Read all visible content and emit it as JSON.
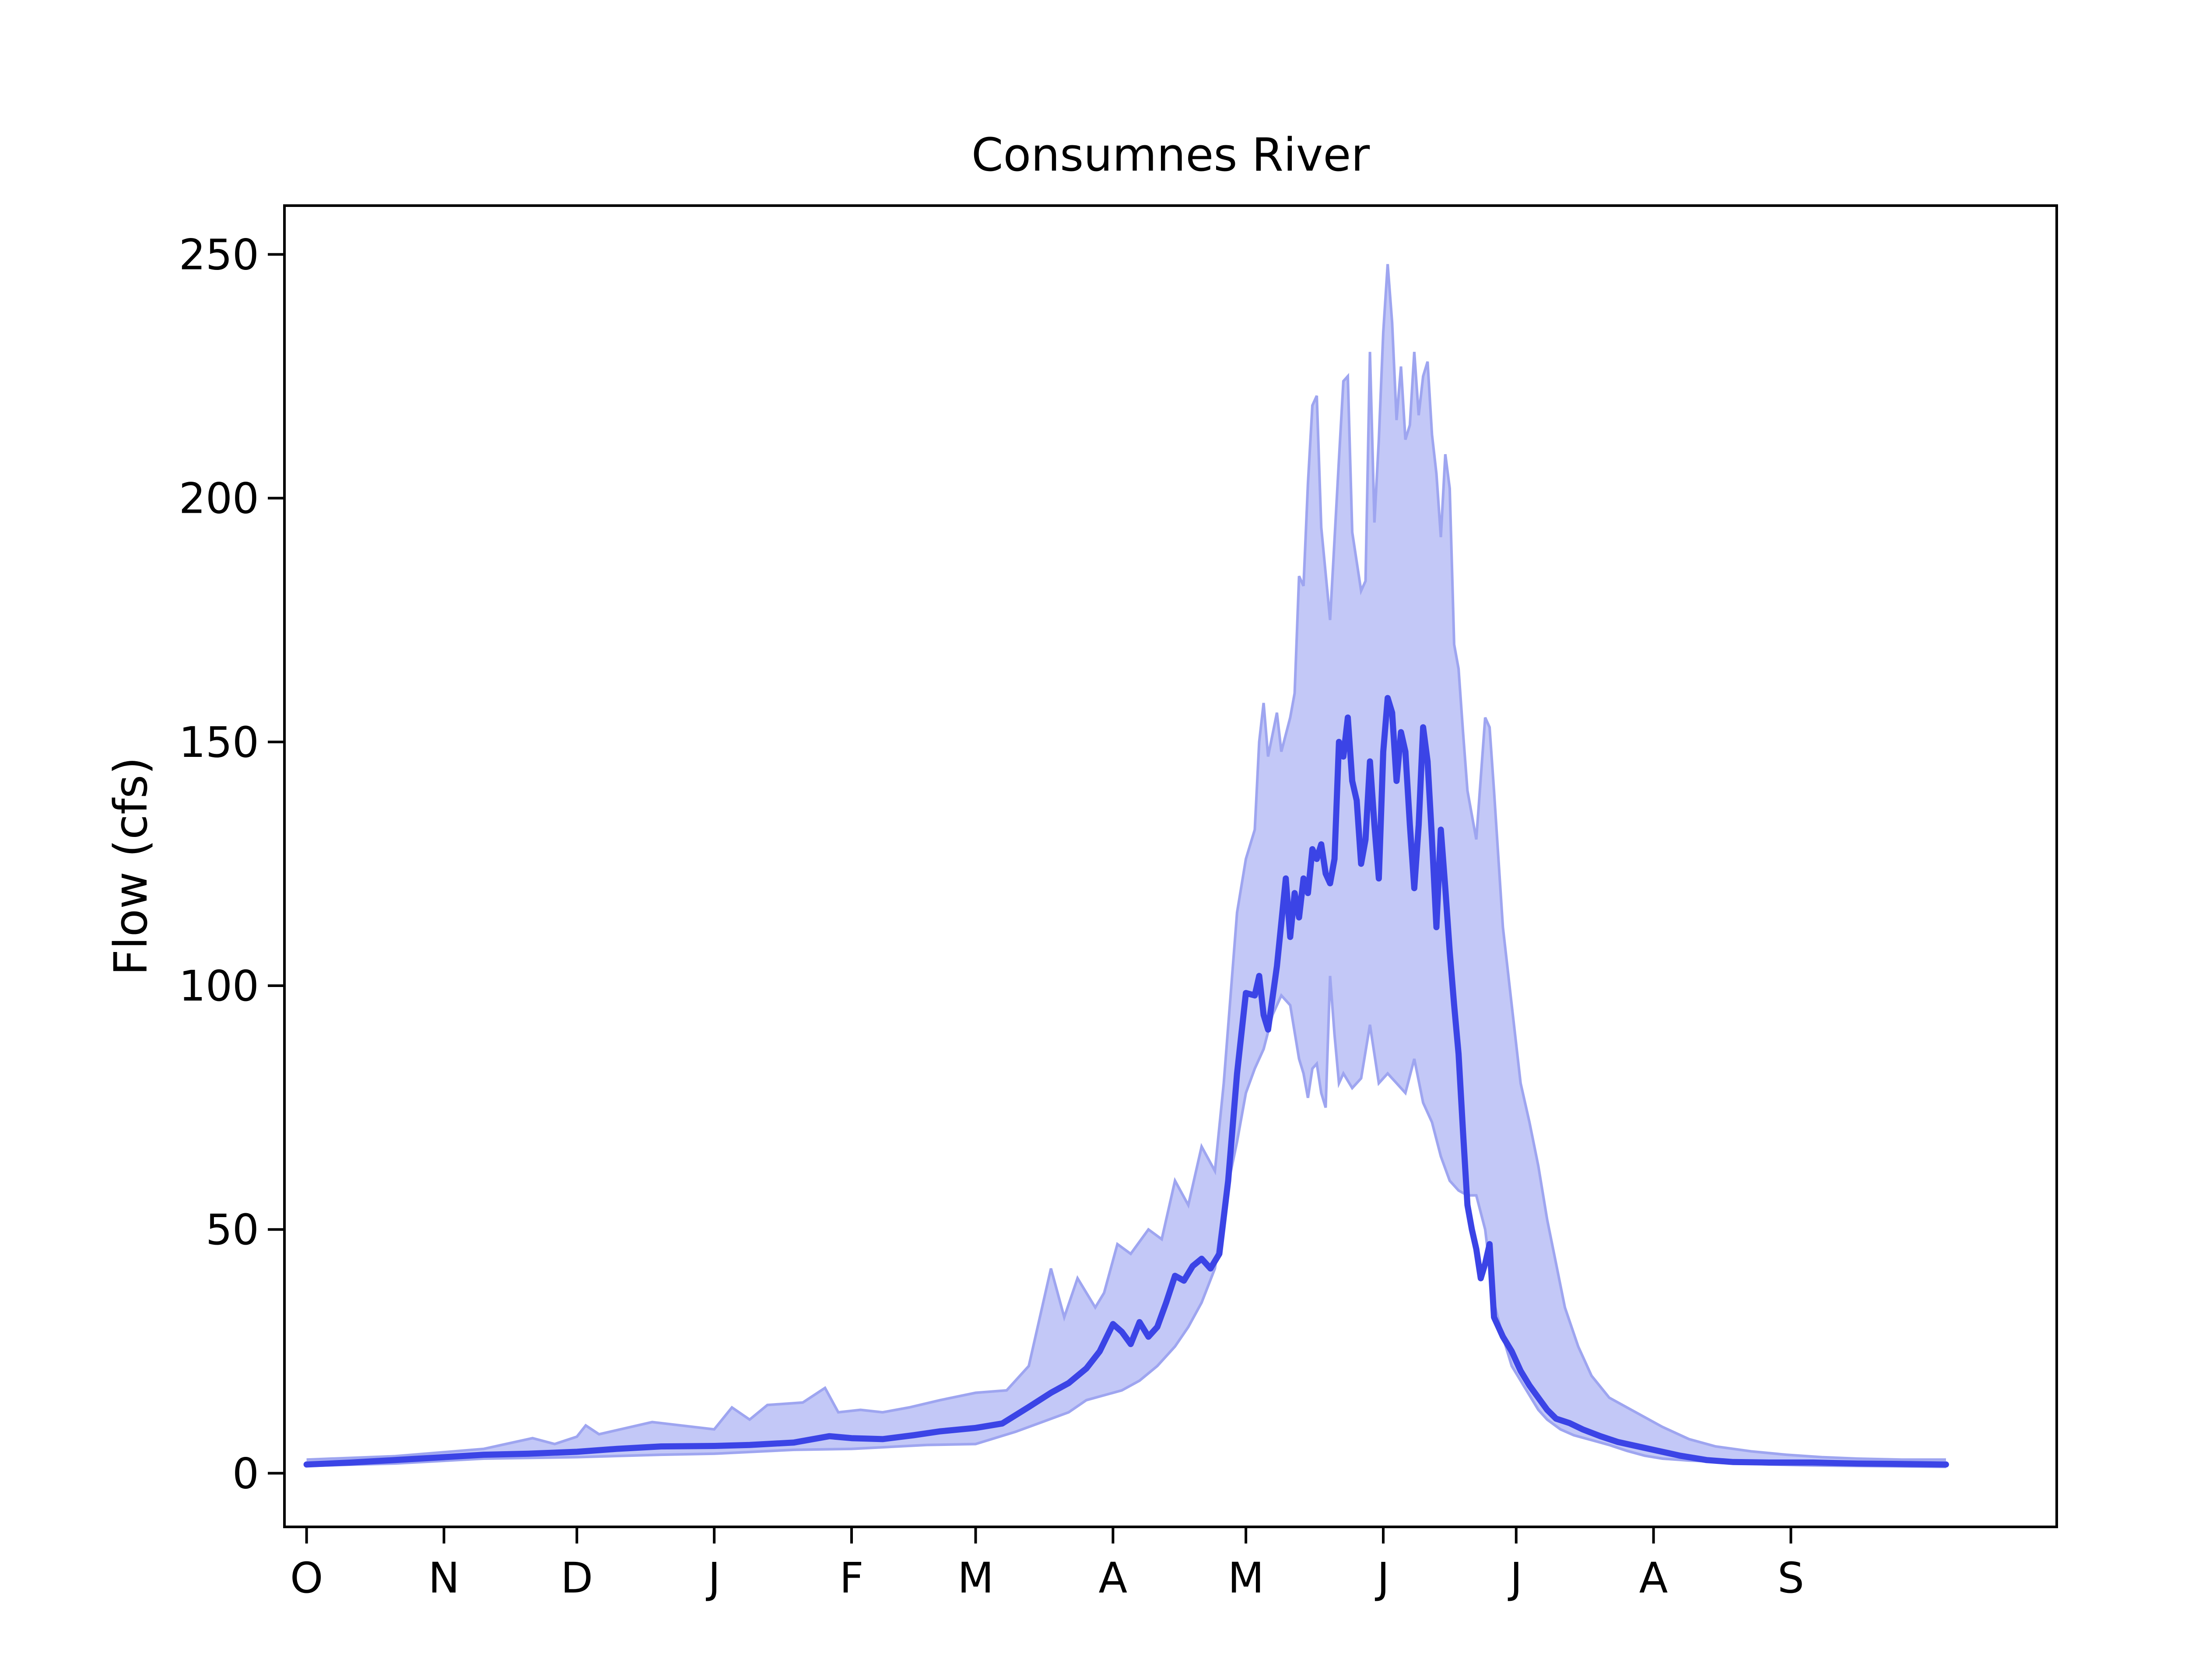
{
  "colors": {
    "line": "#3b44e6",
    "band_fill": "#c3c8f7",
    "band_edge": "#9ea5f0",
    "axes": "#000000"
  },
  "chart_data": {
    "type": "area",
    "title": "Consumnes River",
    "xlabel": "",
    "ylabel": "Flow (cfs)",
    "ylim": [
      -11,
      260
    ],
    "xlim": [
      -5,
      395
    ],
    "yticks": [
      0,
      50,
      100,
      150,
      200,
      250
    ],
    "xticks": [
      {
        "x": 0,
        "label": "O"
      },
      {
        "x": 31,
        "label": "N"
      },
      {
        "x": 61,
        "label": "D"
      },
      {
        "x": 92,
        "label": "J"
      },
      {
        "x": 123,
        "label": "F"
      },
      {
        "x": 151,
        "label": "M"
      },
      {
        "x": 182,
        "label": "A"
      },
      {
        "x": 212,
        "label": "M"
      },
      {
        "x": 243,
        "label": "J"
      },
      {
        "x": 273,
        "label": "J"
      },
      {
        "x": 304,
        "label": "A"
      },
      {
        "x": 335,
        "label": "S"
      }
    ],
    "series": [
      {
        "role": "median",
        "points": [
          [
            0,
            1.8
          ],
          [
            10,
            2.2
          ],
          [
            20,
            2.7
          ],
          [
            31,
            3.3
          ],
          [
            40,
            3.8
          ],
          [
            50,
            4.0
          ],
          [
            61,
            4.4
          ],
          [
            70,
            5.0
          ],
          [
            80,
            5.5
          ],
          [
            92,
            5.6
          ],
          [
            100,
            5.8
          ],
          [
            110,
            6.3
          ],
          [
            118,
            7.6
          ],
          [
            123,
            7.2
          ],
          [
            130,
            7.0
          ],
          [
            137,
            7.8
          ],
          [
            143,
            8.6
          ],
          [
            151,
            9.3
          ],
          [
            157,
            10.2
          ],
          [
            163,
            13.6
          ],
          [
            168,
            16.5
          ],
          [
            172,
            18.5
          ],
          [
            176,
            21.5
          ],
          [
            179,
            25.0
          ],
          [
            182,
            30.6
          ],
          [
            184,
            29.0
          ],
          [
            186,
            26.5
          ],
          [
            188,
            31.0
          ],
          [
            190,
            28.0
          ],
          [
            192,
            30.0
          ],
          [
            194,
            35.0
          ],
          [
            196,
            40.5
          ],
          [
            198,
            39.5
          ],
          [
            200,
            42.5
          ],
          [
            202,
            44.0
          ],
          [
            204,
            42.0
          ],
          [
            206,
            45.0
          ],
          [
            208,
            60.0
          ],
          [
            210,
            82.0
          ],
          [
            212,
            98.5
          ],
          [
            214,
            98.0
          ],
          [
            215,
            102.0
          ],
          [
            216,
            94.0
          ],
          [
            217,
            91.0
          ],
          [
            219,
            104.0
          ],
          [
            221,
            122.0
          ],
          [
            222,
            110.0
          ],
          [
            223,
            119.0
          ],
          [
            224,
            114.0
          ],
          [
            225,
            122.0
          ],
          [
            226,
            119.0
          ],
          [
            227,
            128.0
          ],
          [
            228,
            126.0
          ],
          [
            229,
            129.0
          ],
          [
            230,
            123.0
          ],
          [
            231,
            121.0
          ],
          [
            232,
            126.0
          ],
          [
            233,
            150.0
          ],
          [
            234,
            147.0
          ],
          [
            235,
            155.0
          ],
          [
            236,
            142.0
          ],
          [
            237,
            138.0
          ],
          [
            238,
            125.0
          ],
          [
            239,
            130.0
          ],
          [
            240,
            146.0
          ],
          [
            241,
            133.0
          ],
          [
            242,
            122.0
          ],
          [
            243,
            148.0
          ],
          [
            244,
            159.0
          ],
          [
            245,
            156.0
          ],
          [
            246,
            142.0
          ],
          [
            247,
            152.0
          ],
          [
            248,
            148.0
          ],
          [
            249,
            133.0
          ],
          [
            250,
            120.0
          ],
          [
            251,
            133.0
          ],
          [
            252,
            153.0
          ],
          [
            253,
            146.0
          ],
          [
            254,
            130.0
          ],
          [
            255,
            112.0
          ],
          [
            256,
            132.0
          ],
          [
            257,
            120.0
          ],
          [
            258,
            107.0
          ],
          [
            259,
            96.0
          ],
          [
            260,
            86.0
          ],
          [
            261,
            70.0
          ],
          [
            262,
            55.0
          ],
          [
            263,
            50.0
          ],
          [
            264,
            46.0
          ],
          [
            265,
            40.0
          ],
          [
            266,
            43.0
          ],
          [
            267,
            47.0
          ],
          [
            268,
            32.0
          ],
          [
            269,
            30.0
          ],
          [
            270,
            28.0
          ],
          [
            272,
            25.0
          ],
          [
            274,
            21.0
          ],
          [
            276,
            18.0
          ],
          [
            278,
            15.5
          ],
          [
            280,
            13.0
          ],
          [
            282,
            11.2
          ],
          [
            285,
            10.3
          ],
          [
            288,
            9.0
          ],
          [
            292,
            7.6
          ],
          [
            296,
            6.4
          ],
          [
            300,
            5.6
          ],
          [
            304,
            4.8
          ],
          [
            310,
            3.6
          ],
          [
            316,
            2.7
          ],
          [
            322,
            2.3
          ],
          [
            330,
            2.2
          ],
          [
            340,
            2.2
          ],
          [
            350,
            2.0
          ],
          [
            360,
            1.9
          ],
          [
            370,
            1.8
          ]
        ]
      },
      {
        "role": "upper",
        "points": [
          [
            0,
            2.8
          ],
          [
            20,
            3.5
          ],
          [
            40,
            5.0
          ],
          [
            51,
            7.2
          ],
          [
            56,
            6.0
          ],
          [
            61,
            7.5
          ],
          [
            63,
            9.8
          ],
          [
            66,
            8.0
          ],
          [
            78,
            10.5
          ],
          [
            92,
            9.0
          ],
          [
            96,
            13.5
          ],
          [
            100,
            11.0
          ],
          [
            104,
            14.0
          ],
          [
            112,
            14.5
          ],
          [
            117,
            17.5
          ],
          [
            120,
            12.5
          ],
          [
            125,
            13.0
          ],
          [
            130,
            12.5
          ],
          [
            136,
            13.5
          ],
          [
            143,
            15.0
          ],
          [
            151,
            16.5
          ],
          [
            158,
            17.0
          ],
          [
            163,
            22.0
          ],
          [
            168,
            42.0
          ],
          [
            171,
            32.0
          ],
          [
            174,
            40.0
          ],
          [
            178,
            34.0
          ],
          [
            180,
            37.0
          ],
          [
            183,
            47.0
          ],
          [
            186,
            45.0
          ],
          [
            190,
            50.0
          ],
          [
            193,
            48.0
          ],
          [
            196,
            60.0
          ],
          [
            199,
            55.0
          ],
          [
            202,
            67.0
          ],
          [
            205,
            62.0
          ],
          [
            207,
            80.0
          ],
          [
            210,
            115.0
          ],
          [
            212,
            126.0
          ],
          [
            214,
            132.0
          ],
          [
            215,
            150.0
          ],
          [
            216,
            158.0
          ],
          [
            217,
            147.0
          ],
          [
            219,
            156.0
          ],
          [
            220,
            148.0
          ],
          [
            222,
            155.0
          ],
          [
            223,
            160.0
          ],
          [
            224,
            184.0
          ],
          [
            225,
            182.0
          ],
          [
            226,
            203.0
          ],
          [
            227,
            219.0
          ],
          [
            228,
            221.0
          ],
          [
            229,
            194.0
          ],
          [
            231,
            175.0
          ],
          [
            233,
            208.0
          ],
          [
            234,
            224.0
          ],
          [
            235,
            225.0
          ],
          [
            236,
            193.0
          ],
          [
            238,
            181.0
          ],
          [
            239,
            183.0
          ],
          [
            240,
            230.0
          ],
          [
            241,
            195.0
          ],
          [
            242,
            212.0
          ],
          [
            243,
            234.0
          ],
          [
            244,
            248.0
          ],
          [
            245,
            236.0
          ],
          [
            246,
            216.0
          ],
          [
            247,
            227.0
          ],
          [
            248,
            212.0
          ],
          [
            249,
            215.0
          ],
          [
            250,
            230.0
          ],
          [
            251,
            217.0
          ],
          [
            252,
            225.0
          ],
          [
            253,
            228.0
          ],
          [
            254,
            213.0
          ],
          [
            255,
            205.0
          ],
          [
            256,
            192.0
          ],
          [
            257,
            209.0
          ],
          [
            258,
            202.0
          ],
          [
            259,
            170.0
          ],
          [
            260,
            165.0
          ],
          [
            261,
            152.0
          ],
          [
            262,
            140.0
          ],
          [
            264,
            130.0
          ],
          [
            266,
            155.0
          ],
          [
            267,
            153.0
          ],
          [
            268,
            140.0
          ],
          [
            270,
            112.0
          ],
          [
            272,
            96.0
          ],
          [
            274,
            80.0
          ],
          [
            276,
            72.0
          ],
          [
            278,
            63.0
          ],
          [
            280,
            52.0
          ],
          [
            282,
            43.0
          ],
          [
            284,
            34.0
          ],
          [
            287,
            26.0
          ],
          [
            290,
            20.0
          ],
          [
            294,
            15.5
          ],
          [
            298,
            13.5
          ],
          [
            302,
            11.5
          ],
          [
            306,
            9.5
          ],
          [
            312,
            7.0
          ],
          [
            318,
            5.5
          ],
          [
            326,
            4.5
          ],
          [
            334,
            3.8
          ],
          [
            342,
            3.3
          ],
          [
            350,
            3.0
          ],
          [
            360,
            2.8
          ],
          [
            370,
            2.8
          ]
        ]
      },
      {
        "role": "lower",
        "points": [
          [
            0,
            1.5
          ],
          [
            20,
            2.0
          ],
          [
            40,
            3.0
          ],
          [
            61,
            3.3
          ],
          [
            80,
            3.8
          ],
          [
            92,
            4.0
          ],
          [
            110,
            4.8
          ],
          [
            123,
            5.0
          ],
          [
            140,
            5.8
          ],
          [
            151,
            6.0
          ],
          [
            160,
            8.5
          ],
          [
            166,
            10.5
          ],
          [
            172,
            12.5
          ],
          [
            176,
            15.0
          ],
          [
            180,
            16.0
          ],
          [
            184,
            17.0
          ],
          [
            188,
            19.0
          ],
          [
            192,
            22.0
          ],
          [
            196,
            26.0
          ],
          [
            199,
            30.0
          ],
          [
            202,
            35.0
          ],
          [
            205,
            42.0
          ],
          [
            207,
            55.0
          ],
          [
            210,
            68.0
          ],
          [
            212,
            78.0
          ],
          [
            214,
            83.0
          ],
          [
            216,
            87.0
          ],
          [
            218,
            94.0
          ],
          [
            220,
            98.0
          ],
          [
            222,
            96.0
          ],
          [
            224,
            85.0
          ],
          [
            225,
            82.0
          ],
          [
            226,
            77.0
          ],
          [
            227,
            83.0
          ],
          [
            228,
            84.0
          ],
          [
            229,
            78.0
          ],
          [
            230,
            75.0
          ],
          [
            231,
            102.0
          ],
          [
            232,
            90.0
          ],
          [
            233,
            80.0
          ],
          [
            234,
            82.0
          ],
          [
            236,
            79.0
          ],
          [
            238,
            81.0
          ],
          [
            240,
            92.0
          ],
          [
            242,
            80.0
          ],
          [
            244,
            82.0
          ],
          [
            246,
            80.0
          ],
          [
            248,
            78.0
          ],
          [
            250,
            85.0
          ],
          [
            252,
            76.0
          ],
          [
            254,
            72.0
          ],
          [
            256,
            65.0
          ],
          [
            258,
            60.0
          ],
          [
            260,
            58.0
          ],
          [
            262,
            57.0
          ],
          [
            264,
            57.0
          ],
          [
            266,
            50.0
          ],
          [
            268,
            35.0
          ],
          [
            270,
            28.0
          ],
          [
            272,
            22.0
          ],
          [
            274,
            19.0
          ],
          [
            276,
            16.0
          ],
          [
            278,
            13.0
          ],
          [
            280,
            11.0
          ],
          [
            283,
            9.0
          ],
          [
            286,
            7.8
          ],
          [
            290,
            6.8
          ],
          [
            294,
            5.8
          ],
          [
            298,
            4.6
          ],
          [
            302,
            3.6
          ],
          [
            306,
            3.0
          ],
          [
            312,
            2.6
          ],
          [
            320,
            2.3
          ],
          [
            330,
            1.8
          ],
          [
            340,
            1.6
          ],
          [
            350,
            1.5
          ],
          [
            360,
            1.4
          ],
          [
            370,
            1.3
          ]
        ]
      }
    ]
  }
}
